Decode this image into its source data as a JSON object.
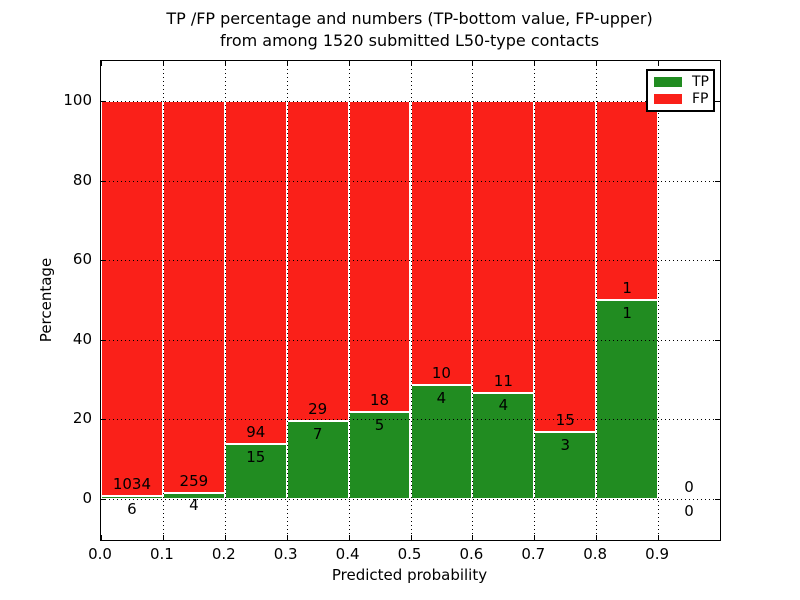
{
  "figure": {
    "title_line1": "TP /FP percentage and numbers (TP-bottom value, FP-upper)",
    "title_line2": "from among 1520 submitted L50-type contacts"
  },
  "chart_data": {
    "type": "bar",
    "stacked": true,
    "unit": "percent",
    "title": "TP /FP percentage and numbers (TP-bottom value, FP-upper) from among 1520 submitted L50-type contacts",
    "xlabel": "Predicted probability",
    "ylabel": "Percentage",
    "total_contacts": 1520,
    "contact_type": "L50-type",
    "xlim": [
      0.0,
      1.0
    ],
    "ylim": [
      -10.4,
      110.1
    ],
    "xticks": [
      "0.0",
      "0.1",
      "0.2",
      "0.3",
      "0.4",
      "0.5",
      "0.6",
      "0.7",
      "0.8",
      "0.9"
    ],
    "yticks": [
      0,
      20,
      40,
      60,
      80,
      100
    ],
    "grid": {
      "visible": true,
      "style": "dotted",
      "color": "#000000"
    },
    "bin_width": 0.1,
    "bin_starts": [
      0.0,
      0.1,
      0.2,
      0.3,
      0.4,
      0.5,
      0.6,
      0.7,
      0.8,
      0.9
    ],
    "series": [
      {
        "name": "TP",
        "color": "#218c21",
        "counts": [
          6,
          4,
          15,
          7,
          5,
          4,
          4,
          3,
          1,
          0
        ]
      },
      {
        "name": "FP",
        "color": "#fa2019",
        "counts": [
          1034,
          259,
          94,
          29,
          18,
          10,
          11,
          15,
          1,
          0
        ]
      }
    ],
    "tp_percent_by_bin": [
      0.58,
      1.52,
      13.76,
      19.44,
      21.74,
      28.57,
      26.67,
      16.67,
      50.0,
      0.0
    ],
    "bar_edge_color": "#ffffff",
    "legend": {
      "position": "upper-right",
      "entries": [
        "TP",
        "FP"
      ]
    }
  }
}
